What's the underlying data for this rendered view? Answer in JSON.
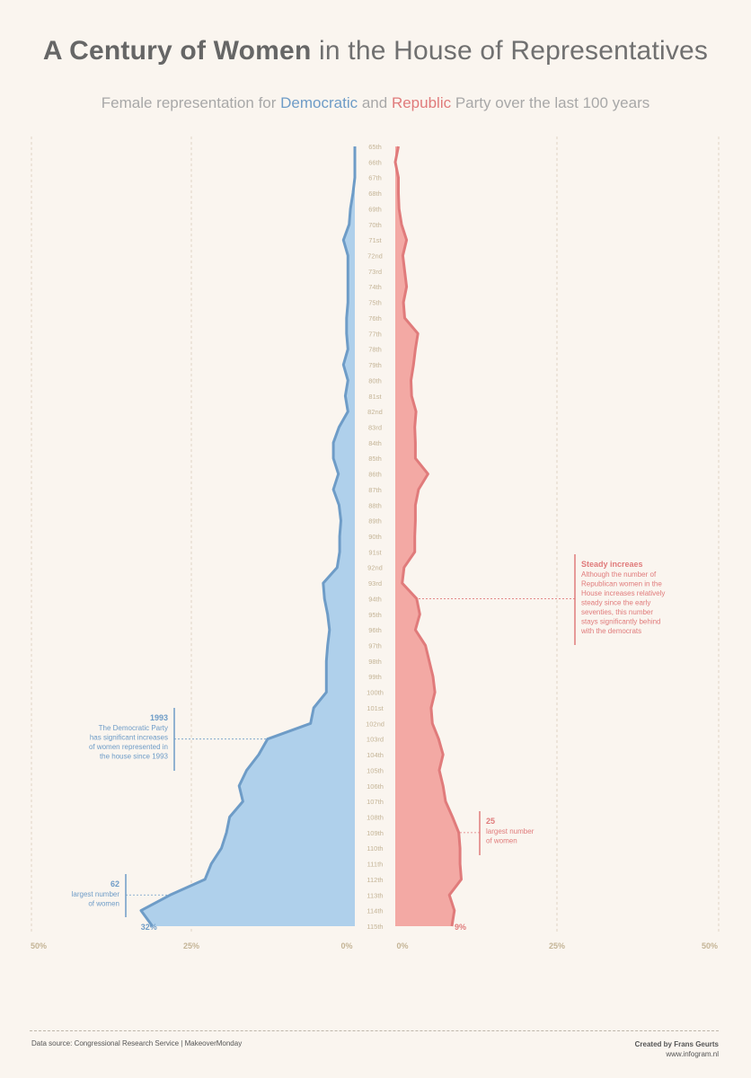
{
  "header": {
    "title_bold": "A Century of Women",
    "title_rest": "in the House of Representatives",
    "subtitle_pre": "Female representation for",
    "subtitle_dem": "Democratic",
    "subtitle_and": "and",
    "subtitle_rep": "Republic",
    "subtitle_post": "Party over the last 100 years"
  },
  "colors": {
    "democratic_fill": "#afd0eb",
    "democratic_line": "#6e9cc7",
    "republican_fill": "#f3a9a4",
    "republican_line": "#e07b7b",
    "axis_text": "#c4b496",
    "grid": "#e0d2c4"
  },
  "chart_data": {
    "type": "area",
    "layout": "mirrored vertical butterfly",
    "categories": [
      "65th",
      "66th",
      "67th",
      "68th",
      "69th",
      "70th",
      "71st",
      "72nd",
      "73rd",
      "74th",
      "75th",
      "76th",
      "77th",
      "78th",
      "79th",
      "80th",
      "81st",
      "82nd",
      "83rd",
      "84th",
      "85th",
      "86th",
      "87th",
      "88th",
      "89th",
      "90th",
      "91st",
      "92nd",
      "93rd",
      "94th",
      "95th",
      "96th",
      "97th",
      "98th",
      "99th",
      "100th",
      "101st",
      "102nd",
      "103rd",
      "104th",
      "105th",
      "106th",
      "107th",
      "108th",
      "109th",
      "110th",
      "111th",
      "112th",
      "113th",
      "114th",
      "115th"
    ],
    "series": [
      {
        "name": "Democratic",
        "side": "left",
        "values": [
          0.0,
          0.0,
          0.0,
          0.3,
          0.7,
          0.9,
          1.8,
          1.1,
          1.1,
          1.1,
          1.1,
          1.3,
          1.3,
          1.1,
          1.8,
          1.1,
          1.5,
          1.1,
          2.5,
          3.4,
          3.4,
          2.6,
          3.4,
          2.5,
          2.2,
          2.4,
          2.4,
          2.8,
          5.0,
          4.8,
          4.3,
          4.0,
          4.3,
          4.5,
          4.5,
          4.5,
          6.5,
          7.0,
          13.8,
          15.2,
          17.1,
          18.3,
          17.7,
          19.8,
          20.3,
          21.1,
          22.7,
          23.7,
          29.2,
          33.8,
          32.0
        ]
      },
      {
        "name": "Republican",
        "side": "right",
        "values": [
          0.5,
          0.0,
          0.5,
          0.5,
          0.6,
          1.0,
          1.8,
          1.2,
          1.5,
          1.8,
          1.3,
          1.5,
          3.6,
          3.2,
          2.9,
          2.5,
          2.6,
          3.3,
          3.1,
          3.2,
          3.2,
          5.2,
          3.7,
          3.2,
          3.2,
          3.1,
          3.1,
          1.4,
          1.1,
          3.4,
          3.9,
          3.2,
          4.8,
          5.4,
          6.0,
          6.3,
          5.7,
          5.9,
          6.9,
          7.6,
          7.0,
          7.6,
          8.0,
          9.1,
          10.1,
          10.3,
          10.3,
          10.5,
          8.6,
          9.4,
          9.0
        ]
      }
    ],
    "xlim": [
      0,
      50
    ],
    "left_ticks": [
      "50%",
      "25%",
      "0%"
    ],
    "right_ticks": [
      "0%",
      "25%",
      "50%"
    ],
    "end_labels": {
      "democratic": "32%",
      "republican": "9%"
    },
    "annotations": [
      {
        "side": "left",
        "congress": "103rd",
        "title": "1993",
        "text": [
          "The Democratic Party",
          "has significant increases",
          "of women represented in",
          "the house since 1993"
        ]
      },
      {
        "side": "left",
        "congress": "113th",
        "title": "62",
        "text": [
          "largest number",
          "of women"
        ]
      },
      {
        "side": "right",
        "congress": "94th",
        "title": "Steady increaes",
        "text": [
          "Although the number of",
          "Republican women in the",
          "House increases relatively",
          "steady since the early",
          "seventies, this number",
          "stays significantly behind",
          "with the democrats"
        ]
      },
      {
        "side": "right",
        "congress": "109th",
        "title": "25",
        "text": [
          "largest number",
          "of women"
        ]
      }
    ]
  },
  "footer": {
    "source": "Data source: Congressional Research Service | MakeoverMonday",
    "credit": "Created by Frans Geurts",
    "url": "www.infogram.nl"
  }
}
